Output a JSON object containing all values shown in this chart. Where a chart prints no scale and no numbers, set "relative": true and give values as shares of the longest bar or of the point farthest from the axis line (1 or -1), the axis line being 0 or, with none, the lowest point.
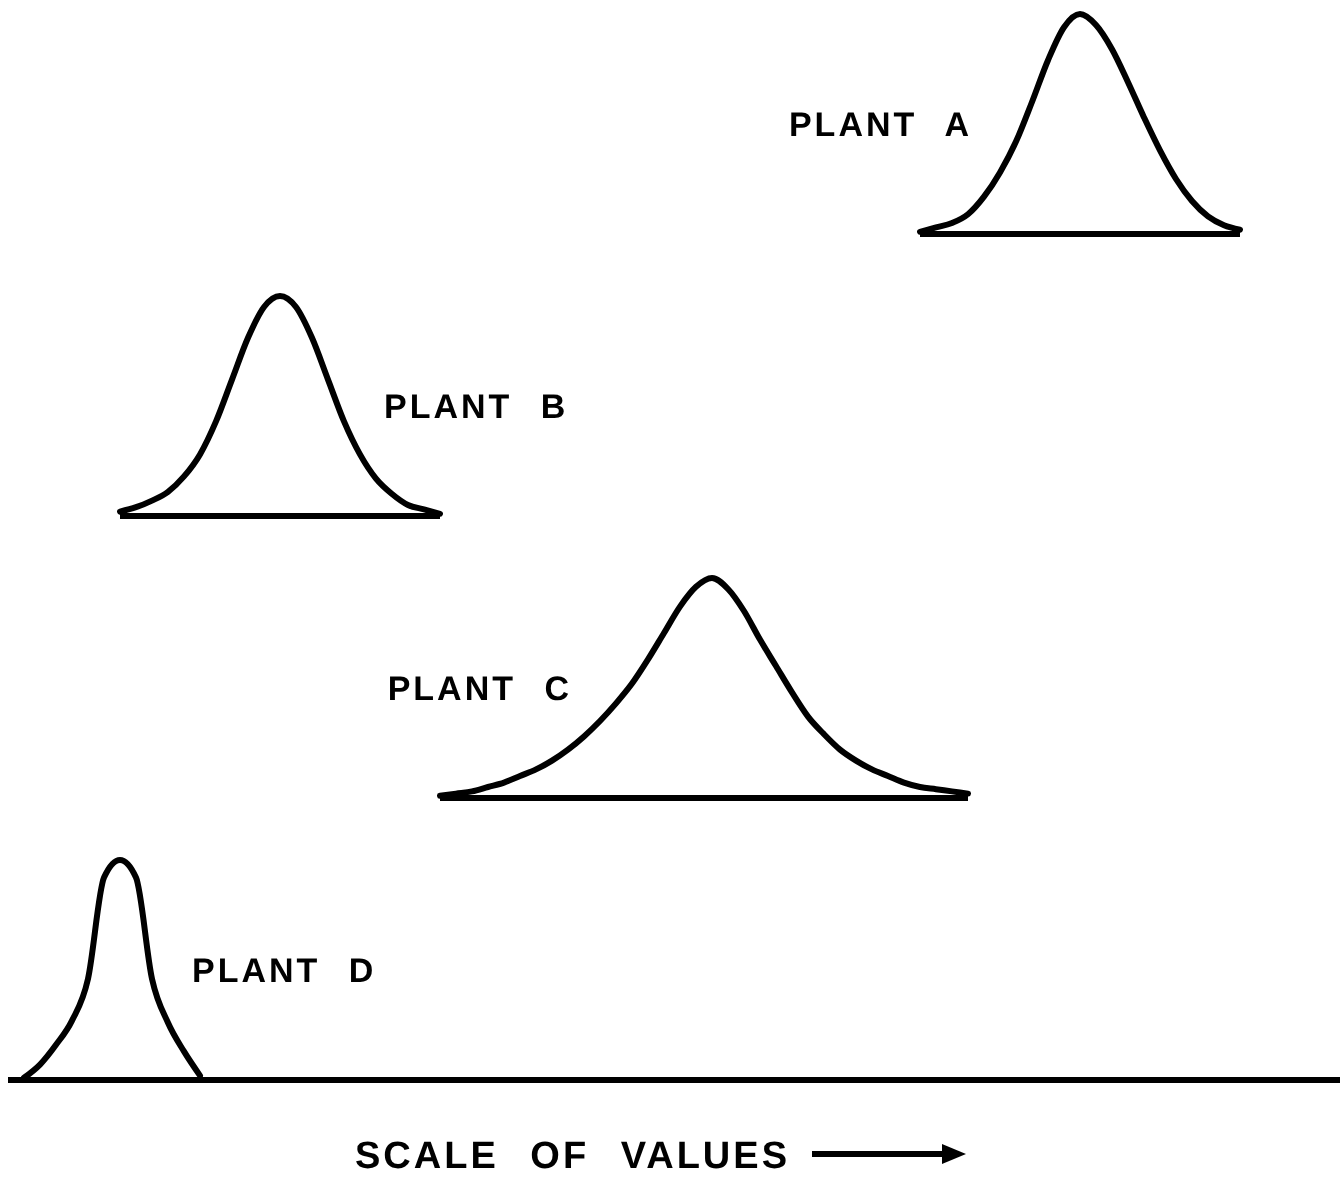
{
  "chart_data": [
    {
      "type": "line",
      "relative": true,
      "categories": [
        null,
        null,
        null,
        null,
        null,
        null,
        null,
        null,
        null,
        null,
        null,
        null,
        null,
        null,
        null,
        null,
        null,
        null,
        null,
        null,
        null
      ],
      "series": [
        {
          "name": "PLANT A",
          "color": "#000000",
          "values": [
            0.01,
            0.03,
            0.05,
            0.09,
            0.17,
            0.28,
            0.42,
            0.6,
            0.79,
            0.94,
            1,
            0.95,
            0.84,
            0.69,
            0.53,
            0.38,
            0.25,
            0.15,
            0.08,
            0.04,
            0.02
          ]
        }
      ]
    },
    {
      "type": "line",
      "relative": true,
      "categories": [
        null,
        null,
        null,
        null,
        null,
        null,
        null,
        null,
        null,
        null,
        null,
        null,
        null,
        null,
        null,
        null,
        null,
        null,
        null,
        null,
        null
      ],
      "series": [
        {
          "name": "PLANT B",
          "color": "#000000",
          "values": [
            0.02,
            0.04,
            0.07,
            0.11,
            0.18,
            0.28,
            0.43,
            0.62,
            0.81,
            0.95,
            1,
            0.95,
            0.81,
            0.62,
            0.43,
            0.28,
            0.17,
            0.1,
            0.05,
            0.03,
            0.01
          ]
        }
      ]
    },
    {
      "type": "line",
      "relative": true,
      "categories": [
        null,
        null,
        null,
        null,
        null,
        null,
        null,
        null,
        null,
        null,
        null,
        null,
        null,
        null,
        null,
        null,
        null,
        null,
        null,
        null,
        null,
        null,
        null,
        null,
        null,
        null,
        null,
        null,
        null,
        null,
        null,
        null,
        null,
        null
      ],
      "series": [
        {
          "name": "PLANT C",
          "color": "#000000",
          "values": [
            0.01,
            0.02,
            0.03,
            0.05,
            0.07,
            0.1,
            0.13,
            0.17,
            0.22,
            0.28,
            0.35,
            0.43,
            0.52,
            0.63,
            0.75,
            0.87,
            0.96,
            1,
            0.95,
            0.85,
            0.72,
            0.6,
            0.48,
            0.37,
            0.29,
            0.22,
            0.17,
            0.13,
            0.1,
            0.07,
            0.05,
            0.04,
            0.03,
            0.02
          ]
        }
      ]
    },
    {
      "type": "line",
      "relative": true,
      "xlabel": "SCALE OF VALUES",
      "categories": [
        null,
        null,
        null,
        null,
        null,
        null,
        null,
        null,
        null,
        null,
        null,
        null,
        null,
        null,
        null,
        null,
        null,
        null,
        null,
        null,
        null,
        null,
        null,
        null,
        null,
        null,
        null,
        null,
        null,
        null,
        null,
        null,
        null,
        null,
        null,
        null,
        null,
        null,
        null,
        null,
        null,
        null,
        null,
        null,
        null,
        null,
        null,
        null,
        null,
        null,
        null,
        null,
        null,
        null,
        null,
        null,
        null,
        null,
        null,
        null,
        null,
        null,
        null,
        null,
        null,
        null,
        null,
        null,
        null,
        null,
        null,
        null,
        null,
        null,
        null,
        null,
        null,
        null,
        null,
        null,
        null,
        null,
        null,
        null
      ],
      "series": [
        {
          "name": "PLANT D",
          "color": "#000000",
          "values": [
            null,
            0.01,
            0.07,
            0.16,
            0.27,
            0.46,
            0.92,
            1,
            0.92,
            0.46,
            0.26,
            0.13,
            0.02,
            null,
            null,
            null,
            null,
            null,
            null,
            null,
            null,
            null,
            null,
            null,
            null,
            null,
            null,
            null,
            null,
            null,
            null,
            null,
            null,
            null,
            null,
            null,
            null,
            null,
            null,
            null,
            null,
            null,
            null,
            null,
            null,
            null,
            null,
            null,
            null,
            null,
            null,
            null,
            null,
            null,
            null,
            null,
            null,
            null,
            null,
            null,
            null,
            null,
            null,
            null,
            null,
            null,
            null,
            null,
            null,
            null,
            null,
            null,
            null,
            null,
            null,
            null,
            null,
            null,
            null,
            null,
            null,
            null,
            null,
            null
          ]
        }
      ]
    }
  ]
}
